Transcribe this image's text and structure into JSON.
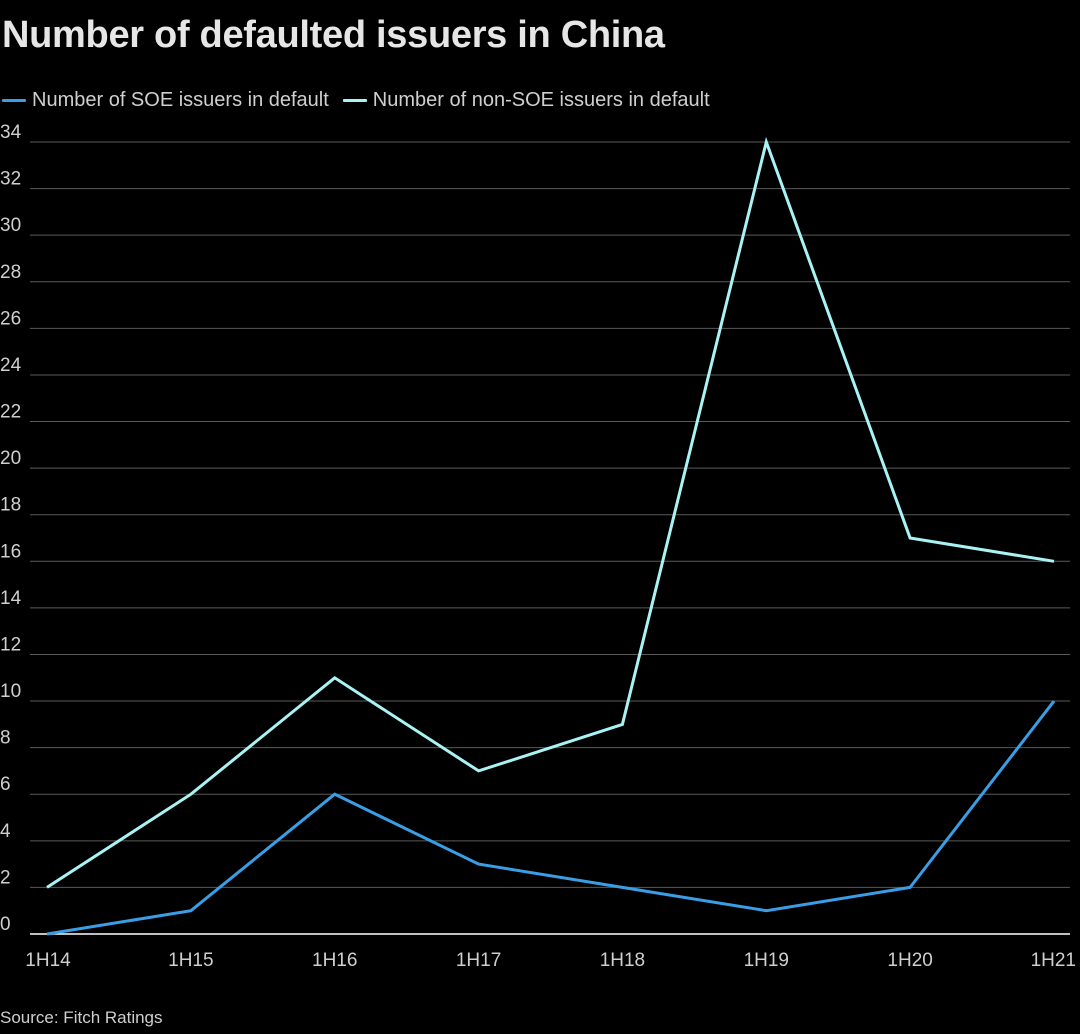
{
  "title": "Number of defaulted issuers in China",
  "source": "Source: Fitch Ratings",
  "colors": {
    "background": "#000000",
    "soe": "#3a9ee6",
    "non_soe": "#a9f3f5",
    "grid": "#5a5a5a",
    "axis": "#ffffff",
    "text": "#e6e6e6"
  },
  "chart_data": {
    "type": "line",
    "title": "Number of defaulted issuers in China",
    "xlabel": "",
    "ylabel": "",
    "categories": [
      "1H14",
      "1H15",
      "1H16",
      "1H17",
      "1H18",
      "1H19",
      "1H20",
      "1H21"
    ],
    "ylim": [
      0,
      34
    ],
    "yticks": [
      0,
      2,
      4,
      6,
      8,
      10,
      12,
      14,
      16,
      18,
      20,
      22,
      24,
      26,
      28,
      30,
      32,
      34
    ],
    "grid": true,
    "legend_position": "top-left",
    "series": [
      {
        "name": "Number of SOE issuers in default",
        "color": "#3a9ee6",
        "values": [
          0,
          1,
          6,
          3,
          2,
          1,
          2,
          10
        ]
      },
      {
        "name": "Number of non-SOE issuers in default",
        "color": "#a9f3f5",
        "values": [
          2,
          6,
          11,
          7,
          9,
          34,
          17,
          16
        ]
      }
    ]
  }
}
